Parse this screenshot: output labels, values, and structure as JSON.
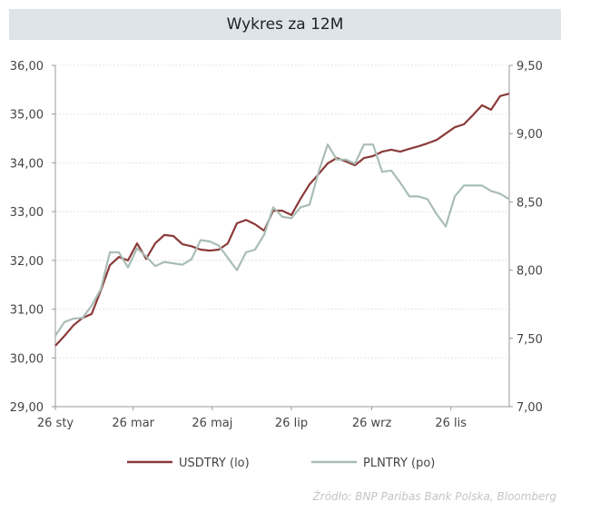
{
  "title": "Wykres za 12M",
  "source": "Źródło:  BNP Paribas Bank Polska, Bloomberg",
  "chart_data": {
    "type": "line",
    "title": "Wykres za 12M",
    "x_tick_labels": [
      "26 sty",
      "26 mar",
      "26 maj",
      "26 lip",
      "26 wrz",
      "26 lis"
    ],
    "x_tick_dates": [
      "2024-01-26",
      "2024-03-26",
      "2024-05-26",
      "2024-07-26",
      "2024-09-26",
      "2024-11-26"
    ],
    "xlim": [
      "2024-01-26",
      "2025-01-10"
    ],
    "y_left": {
      "range": [
        29,
        36
      ],
      "ticks": [
        "29,00",
        "30,00",
        "31,00",
        "32,00",
        "33,00",
        "34,00",
        "35,00",
        "36,00"
      ]
    },
    "y_right": {
      "range": [
        7.0,
        9.5
      ],
      "ticks": [
        "7,00",
        "7,50",
        "8,00",
        "8,50",
        "9,00",
        "9,50"
      ]
    },
    "grid": true,
    "legend": "bottom",
    "x": [
      "2024-01-26",
      "2024-02-02",
      "2024-02-09",
      "2024-02-16",
      "2024-02-23",
      "2024-03-01",
      "2024-03-08",
      "2024-03-15",
      "2024-03-22",
      "2024-03-29",
      "2024-04-05",
      "2024-04-12",
      "2024-04-19",
      "2024-04-26",
      "2024-05-03",
      "2024-05-10",
      "2024-05-17",
      "2024-05-24",
      "2024-05-31",
      "2024-06-07",
      "2024-06-14",
      "2024-06-21",
      "2024-06-28",
      "2024-07-05",
      "2024-07-12",
      "2024-07-19",
      "2024-07-26",
      "2024-08-02",
      "2024-08-09",
      "2024-08-16",
      "2024-08-23",
      "2024-08-30",
      "2024-09-06",
      "2024-09-13",
      "2024-09-20",
      "2024-09-27",
      "2024-10-04",
      "2024-10-11",
      "2024-10-18",
      "2024-10-25",
      "2024-11-01",
      "2024-11-08",
      "2024-11-15",
      "2024-11-22",
      "2024-11-29",
      "2024-12-06",
      "2024-12-13",
      "2024-12-20",
      "2024-12-27",
      "2025-01-03",
      "2025-01-10"
    ],
    "series": [
      {
        "name": "USDTRY (lo)",
        "axis": "left",
        "color": "#8b3a3a",
        "values": [
          30.25,
          30.45,
          30.67,
          30.82,
          30.9,
          31.38,
          31.9,
          32.07,
          32.0,
          32.35,
          32.03,
          32.35,
          32.52,
          32.5,
          32.33,
          32.29,
          32.22,
          32.2,
          32.22,
          32.35,
          32.76,
          32.83,
          32.74,
          32.61,
          33.02,
          33.02,
          32.93,
          33.26,
          33.56,
          33.77,
          33.99,
          34.1,
          34.03,
          33.95,
          34.1,
          34.14,
          34.23,
          34.27,
          34.23,
          34.29,
          34.34,
          34.4,
          34.47,
          34.6,
          34.73,
          34.79,
          34.98,
          35.18,
          35.09,
          35.37,
          35.42
        ]
      },
      {
        "name": "PLNTRY (po)",
        "axis": "right",
        "color": "#a9bdb5",
        "values": [
          7.52,
          7.62,
          7.645,
          7.65,
          7.74,
          7.86,
          8.13,
          8.13,
          8.02,
          8.16,
          8.1,
          8.03,
          8.06,
          8.05,
          8.04,
          8.08,
          8.22,
          8.21,
          8.18,
          8.09,
          8.0,
          8.13,
          8.15,
          8.26,
          8.46,
          8.39,
          8.38,
          8.46,
          8.48,
          8.72,
          8.92,
          8.81,
          8.81,
          8.78,
          8.92,
          8.92,
          8.72,
          8.73,
          8.64,
          8.54,
          8.54,
          8.52,
          8.41,
          8.32,
          8.54,
          8.62,
          8.62,
          8.62,
          8.58,
          8.56,
          8.52
        ]
      }
    ]
  }
}
